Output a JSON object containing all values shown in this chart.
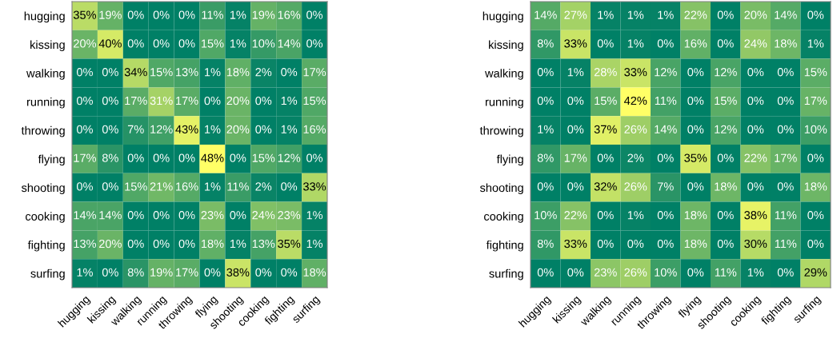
{
  "chart_data": [
    {
      "type": "heatmap",
      "categories": [
        "hugging",
        "kissing",
        "walking",
        "running",
        "throwing",
        "flying",
        "shooting",
        "cooking",
        "fighting",
        "surfing"
      ],
      "y_categories": [
        "hugging",
        "kissing",
        "walking",
        "running",
        "throwing",
        "flying",
        "shooting",
        "cooking",
        "fighting",
        "surfing"
      ],
      "cells": [
        [
          35,
          19,
          0,
          0,
          0,
          11,
          1,
          19,
          16,
          0
        ],
        [
          20,
          40,
          0,
          0,
          0,
          15,
          1,
          10,
          14,
          0
        ],
        [
          0,
          0,
          34,
          15,
          13,
          1,
          18,
          2,
          0,
          17
        ],
        [
          0,
          0,
          17,
          31,
          17,
          0,
          20,
          0,
          1,
          15
        ],
        [
          0,
          0,
          7,
          12,
          43,
          1,
          20,
          0,
          1,
          16
        ],
        [
          17,
          8,
          0,
          0,
          0,
          48,
          0,
          15,
          12,
          0
        ],
        [
          0,
          0,
          15,
          21,
          16,
          1,
          11,
          2,
          0,
          33
        ],
        [
          14,
          14,
          0,
          0,
          0,
          23,
          0,
          24,
          23,
          1
        ],
        [
          13,
          20,
          0,
          0,
          0,
          18,
          1,
          13,
          35,
          1
        ],
        [
          1,
          0,
          8,
          19,
          17,
          0,
          38,
          0,
          0,
          18
        ]
      ],
      "cell_labels": [
        [
          "35%",
          "19%",
          "0%",
          "0%",
          "0%",
          "11%",
          "1%",
          "19%",
          "16%",
          "0%"
        ],
        [
          "20%",
          "40%",
          "0%",
          "0%",
          "0%",
          "15%",
          "1%",
          "10%",
          "14%",
          "0%"
        ],
        [
          "0%",
          "0%",
          "34%",
          "15%",
          "13%",
          "1%",
          "18%",
          "2%",
          "0%",
          "17%"
        ],
        [
          "0%",
          "0%",
          "17%",
          "31%",
          "17%",
          "0%",
          "20%",
          "0%",
          "1%",
          "15%"
        ],
        [
          "0%",
          "0%",
          "7%",
          "12%",
          "43%",
          "1%",
          "20%",
          "0%",
          "1%",
          "16%"
        ],
        [
          "17%",
          "8%",
          "0%",
          "0%",
          "0%",
          "48%",
          "0%",
          "15%",
          "12%",
          "0%"
        ],
        [
          "0%",
          "0%",
          "15%",
          "21%",
          "16%",
          "1%",
          "11%",
          "2%",
          "0%",
          "33%"
        ],
        [
          "14%",
          "14%",
          "0%",
          "0%",
          "0%",
          "23%",
          "0%",
          "24%",
          "23%",
          "1%"
        ],
        [
          "13%",
          "20%",
          "0%",
          "0%",
          "0%",
          "18%",
          "1%",
          "13%",
          "35%",
          "1%"
        ],
        [
          "1%",
          "0%",
          "8%",
          "19%",
          "17%",
          "0%",
          "38%",
          "0%",
          "0%",
          "18%"
        ]
      ]
    },
    {
      "type": "heatmap",
      "categories": [
        "hugging",
        "kissing",
        "walking",
        "running",
        "throwing",
        "flying",
        "shooting",
        "cooking",
        "fighting",
        "surfing"
      ],
      "y_categories": [
        "hugging",
        "kissing",
        "walking",
        "running",
        "throwing",
        "flying",
        "shooting",
        "cooking",
        "fighting",
        "surfing"
      ],
      "cells": [
        [
          14,
          27,
          1,
          1,
          1,
          22,
          0,
          20,
          14,
          0
        ],
        [
          8,
          33,
          0,
          1,
          0,
          16,
          0,
          24,
          18,
          1
        ],
        [
          0,
          1,
          28,
          33,
          12,
          0,
          12,
          0,
          0,
          15
        ],
        [
          0,
          0,
          15,
          42,
          11,
          0,
          15,
          0,
          0,
          17
        ],
        [
          1,
          0,
          37,
          26,
          14,
          0,
          12,
          0,
          0,
          10
        ],
        [
          8,
          17,
          0,
          2,
          0,
          35,
          0,
          22,
          17,
          0
        ],
        [
          0,
          0,
          32,
          26,
          7,
          0,
          18,
          0,
          0,
          18
        ],
        [
          10,
          22,
          0,
          1,
          0,
          18,
          0,
          38,
          11,
          0
        ],
        [
          8,
          33,
          0,
          0,
          0,
          18,
          0,
          30,
          11,
          0
        ],
        [
          0,
          0,
          23,
          26,
          10,
          0,
          11,
          1,
          0,
          29
        ]
      ],
      "cell_labels": [
        [
          "14%",
          "27%",
          "1%",
          "1%",
          "1%",
          "22%",
          "0%",
          "20%",
          "14%",
          "0%"
        ],
        [
          "8%",
          "33%",
          "0%",
          "1%",
          "0%",
          "16%",
          "0%",
          "24%",
          "18%",
          "1%"
        ],
        [
          "0%",
          "1%",
          "28%",
          "33%",
          "12%",
          "0%",
          "12%",
          "0%",
          "0%",
          "15%"
        ],
        [
          "0%",
          "0%",
          "15%",
          "42%",
          "11%",
          "0%",
          "15%",
          "0%",
          "0%",
          "17%"
        ],
        [
          "1%",
          "0%",
          "37%",
          "26%",
          "14%",
          "0%",
          "12%",
          "0%",
          "0%",
          "10%"
        ],
        [
          "8%",
          "17%",
          "0%",
          "2%",
          "0%",
          "35%",
          "0%",
          "22%",
          "17%",
          "0%"
        ],
        [
          "0%",
          "0%",
          "32%",
          "26%",
          "7%",
          "0%",
          "18%",
          "0%",
          "0%",
          "18%"
        ],
        [
          "10%",
          "22%",
          "0%",
          "1%",
          "0%",
          "18%",
          "0%",
          "38%",
          "11%",
          "0%"
        ],
        [
          "8%",
          "33%",
          "0%",
          "0%",
          "0%",
          "18%",
          "0%",
          "30%",
          "11%",
          "0%"
        ],
        [
          "0%",
          "0%",
          "23%",
          "26%",
          "10%",
          "0%",
          "11%",
          "1%",
          "0%",
          "29%"
        ]
      ]
    }
  ]
}
